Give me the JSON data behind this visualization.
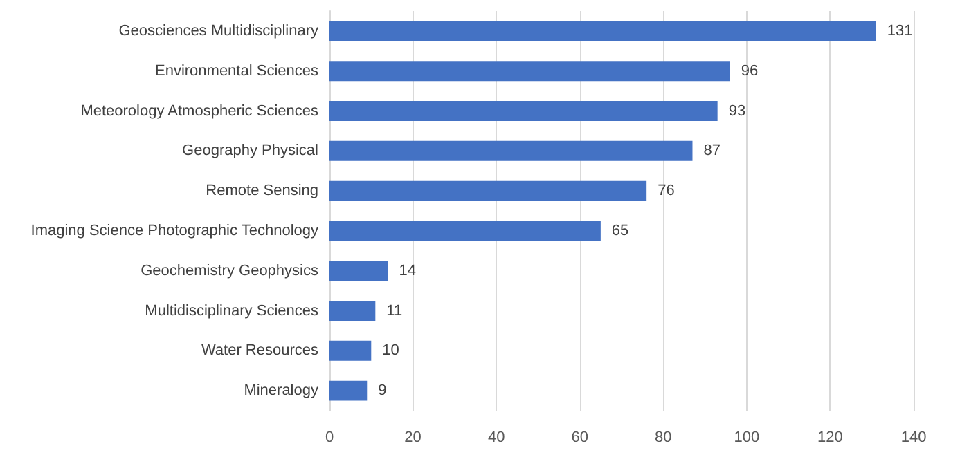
{
  "chart_data": {
    "type": "bar",
    "orientation": "horizontal",
    "categories": [
      "Geosciences Multidisciplinary",
      "Environmental Sciences",
      "Meteorology Atmospheric Sciences",
      "Geography Physical",
      "Remote Sensing",
      "Imaging Science Photographic Technology",
      "Geochemistry Geophysics",
      "Multidisciplinary Sciences",
      "Water Resources",
      "Mineralogy"
    ],
    "values": [
      131,
      96,
      93,
      87,
      76,
      65,
      14,
      11,
      10,
      9
    ],
    "color": "#4472c4",
    "xlim": [
      0,
      140
    ],
    "xticks": [
      0,
      20,
      40,
      60,
      80,
      100,
      120,
      140
    ],
    "grid": "x",
    "data_labels": true
  }
}
